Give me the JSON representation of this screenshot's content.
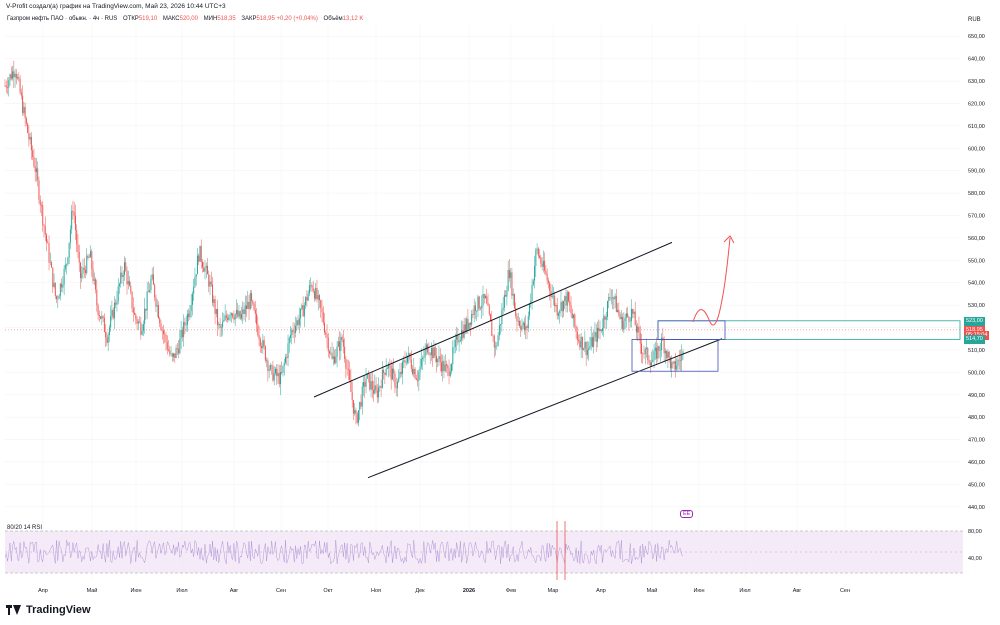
{
  "header": {
    "caption": "V-Profit создал(а) график на TradingView.com, Май 23, 2026 10:44 UTC+3",
    "symbol": "Газпром нефть ПАО · обыкн. · 4ч · RUS",
    "open_label": "ОТКР",
    "open_value": "519,10",
    "high_label": "МАКС",
    "high_value": "520,00",
    "low_label": "МИН",
    "low_value": "518,35",
    "close_label": "ЗАКР",
    "close_value": "518,95",
    "change_value": "+0,20 (+0,04%)",
    "volume_label": "Объём",
    "volume_value": "13,12 K",
    "currency": "RUB"
  },
  "rsi": {
    "label": "80/20 14 RSI"
  },
  "badge": {
    "label": "EE"
  },
  "logo": {
    "text": "TradingView"
  },
  "price_tags": [
    {
      "text": "523,00",
      "price": 523,
      "color": "#26a69a"
    },
    {
      "text": "518,95",
      "price": 518.95,
      "color": "#ef5350"
    },
    {
      "text": "05:15:04",
      "price": 516.8,
      "color": "#ef5350"
    },
    {
      "text": "514,70",
      "price": 514.7,
      "color": "#26a69a"
    }
  ],
  "chart_data": {
    "type": "candlestick",
    "title": "Газпром нефть ПАО · обыкн. · 4ч · RUS",
    "ylabel": "RUB",
    "ylim": [
      435,
      655
    ],
    "y_ticks": [
      650,
      640,
      630,
      620,
      610,
      600,
      590,
      580,
      570,
      560,
      550,
      540,
      530,
      520,
      510,
      500,
      490,
      480,
      470,
      460,
      450,
      440
    ],
    "y_tick_labels": [
      "650,00",
      "640,00",
      "630,00",
      "620,00",
      "610,00",
      "600,00",
      "590,00",
      "580,00",
      "570,00",
      "560,00",
      "550,00",
      "540,00",
      "530,00",
      "520,00",
      "510,00",
      "500,00",
      "490,00",
      "480,00",
      "470,00",
      "460,00",
      "450,00",
      "440,00"
    ],
    "x_tick_labels": [
      "Апр",
      "Май",
      "Июн",
      "Июл",
      "Авг",
      "Сен",
      "Окт",
      "Ноя",
      "Дек",
      "2026",
      "Фев",
      "Мар",
      "Апр",
      "Май",
      "Июн",
      "Июл",
      "Авг",
      "Сен"
    ],
    "x_tick_bold": [
      false,
      false,
      false,
      false,
      false,
      false,
      false,
      false,
      false,
      true,
      false,
      false,
      false,
      false,
      false,
      false,
      false,
      false
    ],
    "price_path": [
      [
        0,
        628
      ],
      [
        3,
        636
      ],
      [
        6,
        612
      ],
      [
        9,
        590
      ],
      [
        12,
        560
      ],
      [
        15,
        532
      ],
      [
        18,
        548
      ],
      [
        20,
        575
      ],
      [
        22,
        542
      ],
      [
        25,
        552
      ],
      [
        27,
        530
      ],
      [
        30,
        516
      ],
      [
        33,
        535
      ],
      [
        35,
        548
      ],
      [
        38,
        525
      ],
      [
        40,
        520
      ],
      [
        43,
        542
      ],
      [
        46,
        520
      ],
      [
        49,
        505
      ],
      [
        51,
        512
      ],
      [
        54,
        528
      ],
      [
        57,
        554
      ],
      [
        60,
        540
      ],
      [
        63,
        518
      ],
      [
        66,
        528
      ],
      [
        69,
        524
      ],
      [
        72,
        532
      ],
      [
        75,
        515
      ],
      [
        78,
        500
      ],
      [
        81,
        497
      ],
      [
        84,
        518
      ],
      [
        87,
        526
      ],
      [
        90,
        540
      ],
      [
        93,
        526
      ],
      [
        96,
        505
      ],
      [
        99,
        515
      ],
      [
        101,
        496
      ],
      [
        103,
        478
      ],
      [
        106,
        498
      ],
      [
        109,
        490
      ],
      [
        112,
        504
      ],
      [
        115,
        494
      ],
      [
        118,
        508
      ],
      [
        121,
        498
      ],
      [
        124,
        512
      ],
      [
        127,
        506
      ],
      [
        130,
        500
      ],
      [
        133,
        516
      ],
      [
        136,
        522
      ],
      [
        138,
        530
      ],
      [
        141,
        532
      ],
      [
        144,
        510
      ],
      [
        148,
        546
      ],
      [
        150,
        525
      ],
      [
        153,
        518
      ],
      [
        156,
        555
      ],
      [
        159,
        542
      ],
      [
        162,
        528
      ],
      [
        165,
        533
      ],
      [
        168,
        516
      ],
      [
        171,
        510
      ],
      [
        175,
        520
      ],
      [
        178,
        536
      ],
      [
        181,
        522
      ],
      [
        184,
        527
      ],
      [
        187,
        510
      ],
      [
        190,
        505
      ],
      [
        193,
        514
      ],
      [
        196,
        501
      ],
      [
        199,
        508
      ]
    ],
    "price_range": {
      "start": 628,
      "end": 519
    },
    "channel": {
      "upper": [
        [
          0,
          489
        ],
        [
          1,
          558
        ]
      ],
      "lower": [
        [
          0,
          453
        ],
        [
          1,
          515
        ]
      ]
    },
    "zones": [
      {
        "name": "resistance",
        "top": 523.0,
        "bottom": 514.7,
        "color": "#26a69a"
      },
      {
        "name": "support-box",
        "top": 514.7,
        "bottom": 500.5,
        "color": "#3f51b5"
      }
    ],
    "current_price": 518.95,
    "rsi": {
      "upper": 80,
      "lower": 20,
      "period": 14,
      "ticks": [
        "80,00",
        "40,00"
      ]
    }
  }
}
